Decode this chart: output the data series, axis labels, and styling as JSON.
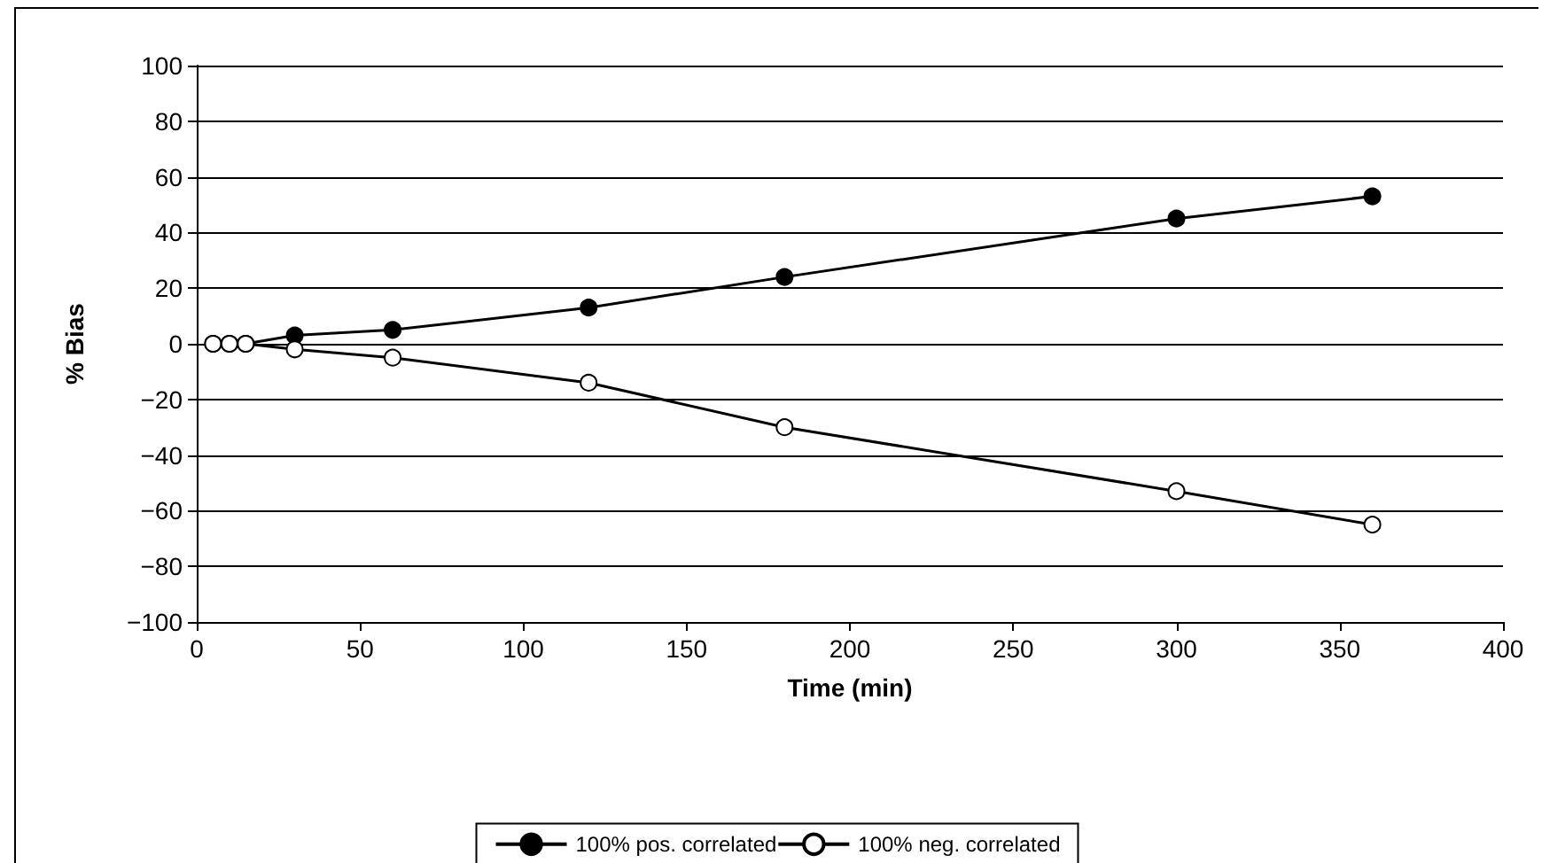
{
  "chart_data": {
    "type": "line",
    "xlabel": "Time (min)",
    "ylabel": "% Bias",
    "x": [
      5,
      10,
      15,
      30,
      60,
      120,
      180,
      300,
      360
    ],
    "series": [
      {
        "name": "100% pos. correlated",
        "color": "#000000",
        "marker": "circle",
        "values": [
          0,
          0,
          0,
          3,
          5,
          13,
          24,
          45,
          53
        ]
      },
      {
        "name": "100% neg. correlated",
        "color": "#ffffff",
        "marker": "circle",
        "values": [
          0,
          0,
          0,
          -2,
          -5,
          -14,
          -30,
          -53,
          -65
        ]
      }
    ],
    "xlim": [
      0,
      400
    ],
    "xticks": [
      0,
      50,
      100,
      150,
      200,
      250,
      300,
      350,
      400
    ],
    "ylim": [
      -100,
      100
    ],
    "yticks": [
      -100,
      -80,
      -60,
      -40,
      -20,
      0,
      20,
      40,
      60,
      80,
      100
    ],
    "grid": "y",
    "legend": "bottom",
    "line_style": "solid"
  }
}
